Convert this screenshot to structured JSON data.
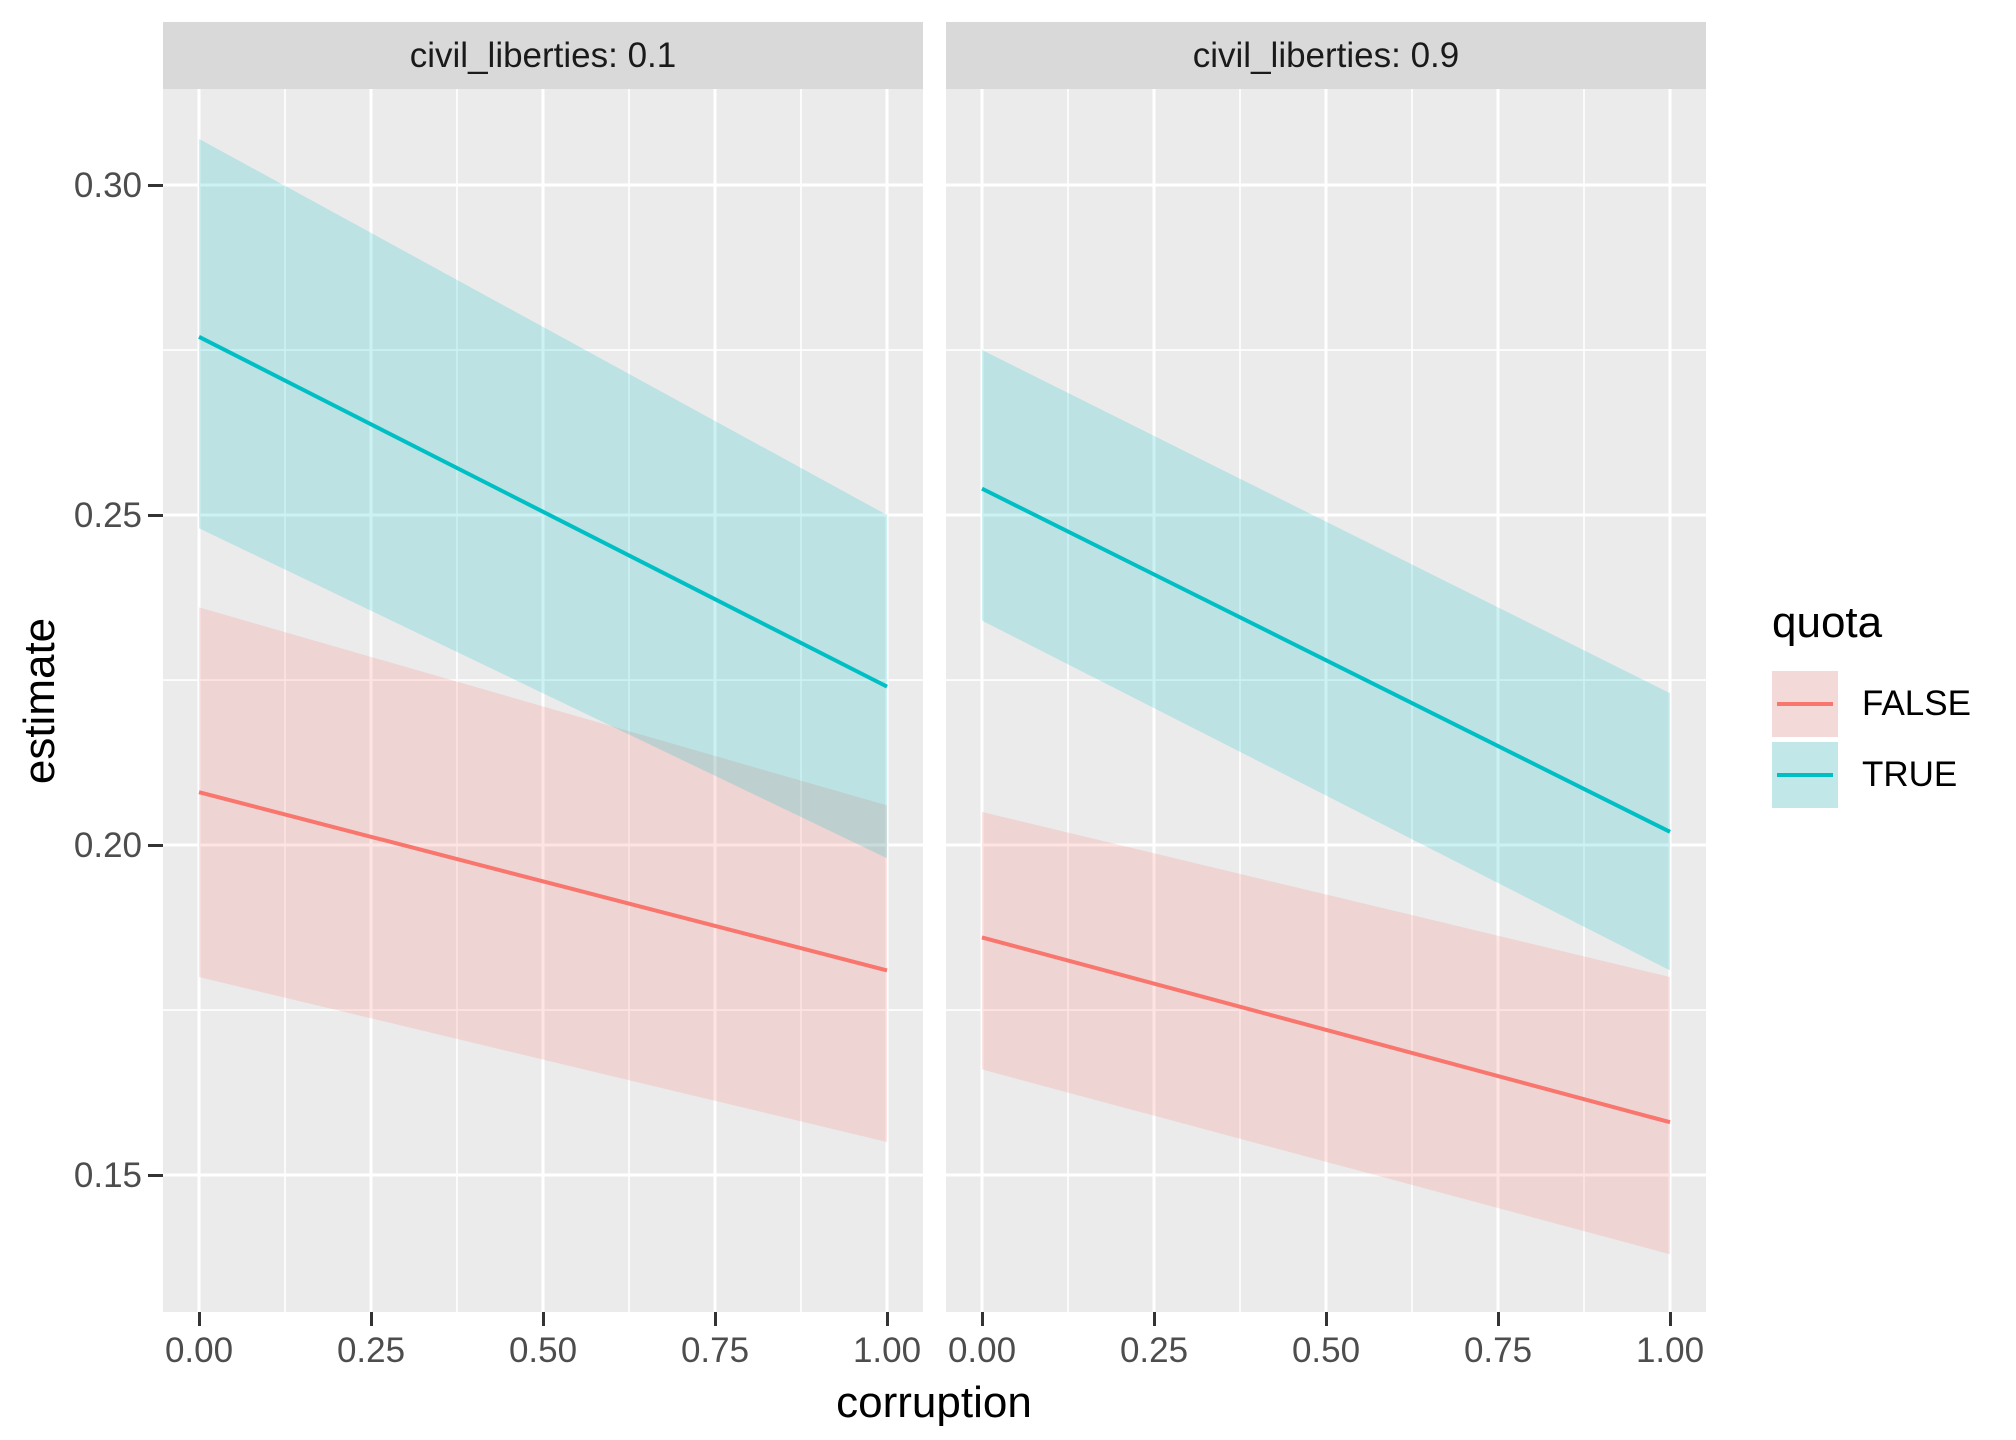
{
  "axes": {
    "x": {
      "title": "corruption"
    },
    "y": {
      "title": "estimate"
    }
  },
  "legend": {
    "title": "quota",
    "entries": [
      {
        "label": "FALSE",
        "color": "#F8766D"
      },
      {
        "label": "TRUE",
        "color": "#00BFC4"
      }
    ]
  },
  "colors": {
    "panel_background": "#EBEBEB",
    "strip_background": "#D9D9D9",
    "gridline": "#FFFFFF",
    "tick_text": "#4D4D4D",
    "tick_mark": "#333333",
    "series_false": "#F8766D",
    "series_true": "#00BFC4",
    "legend_key_background": "#F2F2F2"
  },
  "chart_data": {
    "type": "line",
    "facet_variable": "civil_liberties",
    "xlabel": "corruption",
    "ylabel": "estimate",
    "legend_title": "quota",
    "xlim": [
      -0.052,
      1.052
    ],
    "ylim": [
      0.1293,
      0.3146
    ],
    "x_ticks": [
      0,
      0.25,
      0.5,
      0.75,
      1
    ],
    "x_tick_labels": [
      "0.00",
      "0.25",
      "0.50",
      "0.75",
      "1.00"
    ],
    "x_minor_gridlines": [
      0.125,
      0.375,
      0.625,
      0.875
    ],
    "y_ticks": [
      0.15,
      0.2,
      0.25,
      0.3
    ],
    "y_tick_labels": [
      "0.15",
      "0.20",
      "0.25",
      "0.30"
    ],
    "y_minor_gridlines": [
      0.175,
      0.225,
      0.275
    ],
    "ribbon_alpha": 0.2,
    "grid": true,
    "legend_position": "right",
    "panels": [
      {
        "label": "civil_liberties: 0.1",
        "series": [
          {
            "name": "FALSE",
            "color": "#F8766D",
            "line": {
              "x": [
                0,
                1
              ],
              "y": [
                0.208,
                0.181
              ]
            },
            "ribbon": {
              "upper": [
                0.236,
                0.206
              ],
              "lower": [
                0.18,
                0.155
              ]
            }
          },
          {
            "name": "TRUE",
            "color": "#00BFC4",
            "line": {
              "x": [
                0,
                1
              ],
              "y": [
                0.277,
                0.224
              ]
            },
            "ribbon": {
              "upper": [
                0.307,
                0.25
              ],
              "lower": [
                0.248,
                0.198
              ]
            }
          }
        ]
      },
      {
        "label": "civil_liberties: 0.9",
        "series": [
          {
            "name": "FALSE",
            "color": "#F8766D",
            "line": {
              "x": [
                0,
                1
              ],
              "y": [
                0.186,
                0.158
              ]
            },
            "ribbon": {
              "upper": [
                0.205,
                0.18
              ],
              "lower": [
                0.166,
                0.138
              ]
            }
          },
          {
            "name": "TRUE",
            "color": "#00BFC4",
            "line": {
              "x": [
                0,
                1
              ],
              "y": [
                0.254,
                0.202
              ]
            },
            "ribbon": {
              "upper": [
                0.275,
                0.223
              ],
              "lower": [
                0.234,
                0.181
              ]
            }
          }
        ]
      }
    ]
  }
}
